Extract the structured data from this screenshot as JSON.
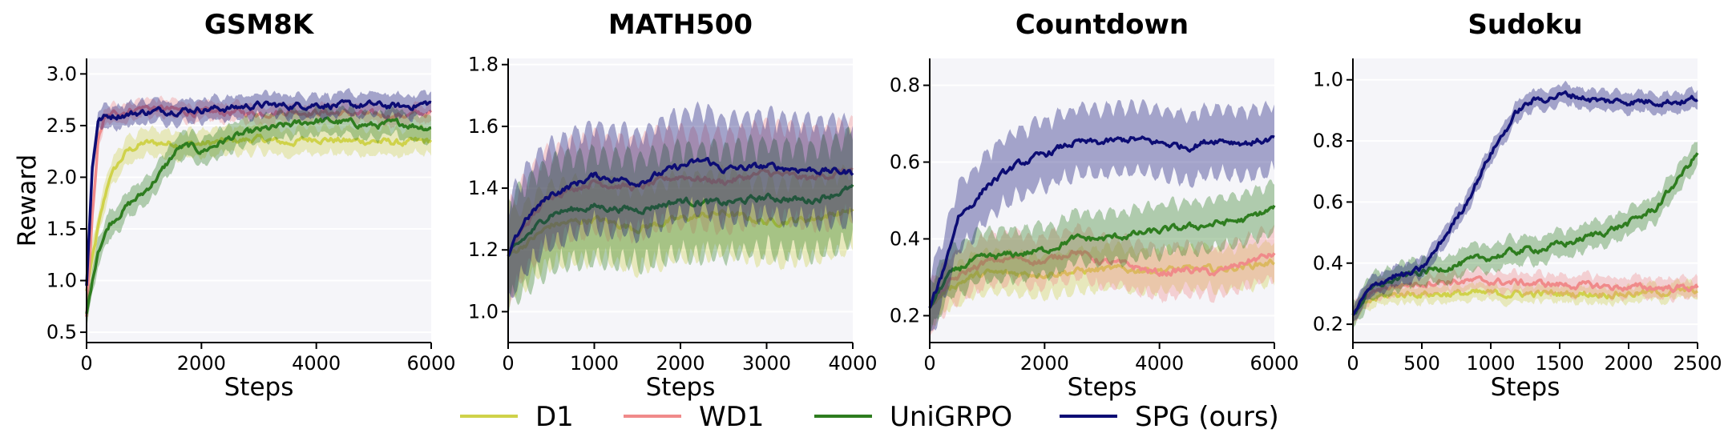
{
  "legend": [
    {
      "name": "D1",
      "color": "#cfd24a"
    },
    {
      "name": "WD1",
      "color": "#f08a8a"
    },
    {
      "name": "UniGRPO",
      "color": "#2e7d1f"
    },
    {
      "name": "SPG (ours)",
      "color": "#0c0c74"
    }
  ],
  "chart_data": [
    {
      "type": "line",
      "title": "GSM8K",
      "xlabel": "Steps",
      "ylabel": "Reward",
      "xlim": [
        0,
        6000
      ],
      "ylim": [
        0.4,
        3.15
      ],
      "xticks": [
        0,
        2000,
        4000,
        6000
      ],
      "yticks": [
        0.5,
        1.0,
        1.5,
        2.0,
        2.5,
        3.0
      ],
      "grid": true,
      "series": [
        {
          "name": "D1",
          "color": "#cfd24a",
          "band": 0.12,
          "x": [
            0,
            200,
            400,
            700,
            1000,
            1500,
            2000,
            2500,
            3000,
            3500,
            4000,
            4500,
            5000,
            5500,
            6000
          ],
          "y": [
            0.9,
            1.5,
            2.0,
            2.25,
            2.33,
            2.33,
            2.32,
            2.35,
            2.37,
            2.33,
            2.38,
            2.35,
            2.35,
            2.33,
            2.35
          ]
        },
        {
          "name": "WD1",
          "color": "#f08a8a",
          "band": 0.08,
          "x": [
            0,
            100,
            200,
            300,
            500,
            1000,
            1500,
            2000,
            2500,
            3000,
            3500,
            4000,
            4500,
            5000,
            5500,
            6000
          ],
          "y": [
            0.65,
            1.6,
            2.35,
            2.55,
            2.62,
            2.68,
            2.65,
            2.62,
            2.63,
            2.62,
            2.64,
            2.63,
            2.62,
            2.6,
            2.6,
            2.62
          ]
        },
        {
          "name": "UniGRPO",
          "color": "#2e7d1f",
          "band": 0.12,
          "x": [
            0,
            200,
            400,
            700,
            1000,
            1300,
            1600,
            1800,
            2000,
            2500,
            3000,
            3500,
            4000,
            4500,
            5000,
            5500,
            6000
          ],
          "y": [
            0.68,
            1.3,
            1.55,
            1.72,
            1.85,
            2.05,
            2.28,
            2.3,
            2.25,
            2.38,
            2.45,
            2.5,
            2.55,
            2.53,
            2.5,
            2.52,
            2.48
          ]
        },
        {
          "name": "SPG (ours)",
          "color": "#0c0c74",
          "band": 0.1,
          "x": [
            0,
            100,
            200,
            300,
            500,
            1000,
            1500,
            2000,
            2500,
            3000,
            3500,
            4000,
            4500,
            5000,
            5500,
            6000
          ],
          "y": [
            0.95,
            2.1,
            2.55,
            2.58,
            2.6,
            2.63,
            2.65,
            2.66,
            2.67,
            2.7,
            2.69,
            2.71,
            2.69,
            2.7,
            2.68,
            2.72
          ]
        }
      ]
    },
    {
      "type": "line",
      "title": "MATH500",
      "xlabel": "Steps",
      "ylabel": "",
      "xlim": [
        0,
        4000
      ],
      "ylim": [
        0.9,
        1.82
      ],
      "xticks": [
        0,
        1000,
        2000,
        3000,
        4000
      ],
      "yticks": [
        1.0,
        1.2,
        1.4,
        1.6,
        1.8
      ],
      "grid": true,
      "series": [
        {
          "name": "D1",
          "color": "#cfd24a",
          "band": 0.12,
          "x": [
            0,
            200,
            500,
            1000,
            1500,
            2000,
            2500,
            3000,
            3500,
            4000
          ],
          "y": [
            1.18,
            1.22,
            1.28,
            1.3,
            1.27,
            1.3,
            1.32,
            1.29,
            1.3,
            1.33
          ]
        },
        {
          "name": "WD1",
          "color": "#f08a8a",
          "band": 0.14,
          "x": [
            0,
            200,
            500,
            1000,
            1500,
            2000,
            2500,
            3000,
            3500,
            4000
          ],
          "y": [
            1.18,
            1.28,
            1.38,
            1.42,
            1.4,
            1.44,
            1.42,
            1.45,
            1.43,
            1.46
          ]
        },
        {
          "name": "UniGRPO",
          "color": "#2e7d1f",
          "band": 0.16,
          "x": [
            0,
            200,
            500,
            1000,
            1500,
            2000,
            2500,
            3000,
            3500,
            4000
          ],
          "y": [
            1.18,
            1.24,
            1.32,
            1.34,
            1.33,
            1.36,
            1.35,
            1.37,
            1.36,
            1.4
          ]
        },
        {
          "name": "SPG (ours)",
          "color": "#0c0c74",
          "band": 0.15,
          "x": [
            0,
            200,
            500,
            1000,
            1500,
            2000,
            2300,
            2500,
            3000,
            3500,
            4000
          ],
          "y": [
            1.18,
            1.3,
            1.38,
            1.44,
            1.42,
            1.47,
            1.49,
            1.46,
            1.47,
            1.46,
            1.45
          ]
        }
      ]
    },
    {
      "type": "line",
      "title": "Countdown",
      "xlabel": "Steps",
      "ylabel": "",
      "xlim": [
        0,
        6000
      ],
      "ylim": [
        0.13,
        0.87
      ],
      "xticks": [
        0,
        2000,
        4000,
        6000
      ],
      "yticks": [
        0.2,
        0.4,
        0.6,
        0.8
      ],
      "grid": true,
      "series": [
        {
          "name": "D1",
          "color": "#cfd24a",
          "band": 0.05,
          "x": [
            0,
            300,
            700,
            1000,
            2000,
            3000,
            4000,
            5000,
            6000
          ],
          "y": [
            0.22,
            0.27,
            0.3,
            0.31,
            0.31,
            0.32,
            0.32,
            0.32,
            0.34
          ]
        },
        {
          "name": "WD1",
          "color": "#f08a8a",
          "band": 0.06,
          "x": [
            0,
            300,
            700,
            1000,
            1500,
            2000,
            2500,
            3000,
            3500,
            4000,
            4500,
            5000,
            5500,
            6000
          ],
          "y": [
            0.22,
            0.28,
            0.32,
            0.34,
            0.35,
            0.34,
            0.37,
            0.34,
            0.33,
            0.31,
            0.32,
            0.31,
            0.34,
            0.36
          ]
        },
        {
          "name": "UniGRPO",
          "color": "#2e7d1f",
          "band": 0.06,
          "x": [
            0,
            300,
            700,
            1000,
            1500,
            2000,
            2500,
            3000,
            3500,
            4000,
            4500,
            5000,
            5500,
            6000
          ],
          "y": [
            0.22,
            0.3,
            0.34,
            0.35,
            0.36,
            0.37,
            0.4,
            0.4,
            0.41,
            0.42,
            0.43,
            0.44,
            0.45,
            0.48
          ]
        },
        {
          "name": "SPG (ours)",
          "color": "#0c0c74",
          "band": 0.08,
          "x": [
            0,
            200,
            500,
            800,
            1000,
            1500,
            2000,
            2500,
            3000,
            3500,
            4000,
            4500,
            5000,
            5500,
            6000
          ],
          "y": [
            0.22,
            0.3,
            0.46,
            0.5,
            0.54,
            0.59,
            0.62,
            0.65,
            0.65,
            0.66,
            0.65,
            0.64,
            0.66,
            0.65,
            0.66
          ]
        }
      ]
    },
    {
      "type": "line",
      "title": "Sudoku",
      "xlabel": "Steps",
      "ylabel": "",
      "xlim": [
        0,
        2500
      ],
      "ylim": [
        0.14,
        1.07
      ],
      "xticks": [
        0,
        500,
        1000,
        1500,
        2000,
        2500
      ],
      "yticks": [
        0.2,
        0.4,
        0.6,
        0.8,
        1.0
      ],
      "grid": true,
      "series": [
        {
          "name": "D1",
          "color": "#cfd24a",
          "band": 0.025,
          "x": [
            0,
            100,
            200,
            400,
            600,
            1000,
            1500,
            2000,
            2500
          ],
          "y": [
            0.23,
            0.27,
            0.29,
            0.3,
            0.3,
            0.3,
            0.3,
            0.3,
            0.31
          ]
        },
        {
          "name": "WD1",
          "color": "#f08a8a",
          "band": 0.03,
          "x": [
            0,
            100,
            200,
            400,
            600,
            1000,
            1500,
            2000,
            2500
          ],
          "y": [
            0.23,
            0.29,
            0.32,
            0.33,
            0.34,
            0.34,
            0.33,
            0.32,
            0.32
          ]
        },
        {
          "name": "UniGRPO",
          "color": "#2e7d1f",
          "band": 0.04,
          "x": [
            0,
            100,
            200,
            400,
            600,
            800,
            1000,
            1200,
            1400,
            1600,
            1800,
            2000,
            2200,
            2400,
            2500
          ],
          "y": [
            0.23,
            0.3,
            0.33,
            0.36,
            0.38,
            0.4,
            0.42,
            0.44,
            0.45,
            0.47,
            0.5,
            0.53,
            0.58,
            0.7,
            0.76
          ]
        },
        {
          "name": "SPG (ours)",
          "color": "#0c0c74",
          "band": 0.03,
          "x": [
            0,
            100,
            200,
            300,
            400,
            500,
            600,
            800,
            1000,
            1200,
            1300,
            1400,
            1500,
            1600,
            1800,
            2000,
            2200,
            2400,
            2500
          ],
          "y": [
            0.23,
            0.3,
            0.34,
            0.36,
            0.36,
            0.38,
            0.44,
            0.58,
            0.76,
            0.9,
            0.93,
            0.94,
            0.95,
            0.95,
            0.93,
            0.93,
            0.93,
            0.93,
            0.94
          ]
        }
      ]
    }
  ]
}
